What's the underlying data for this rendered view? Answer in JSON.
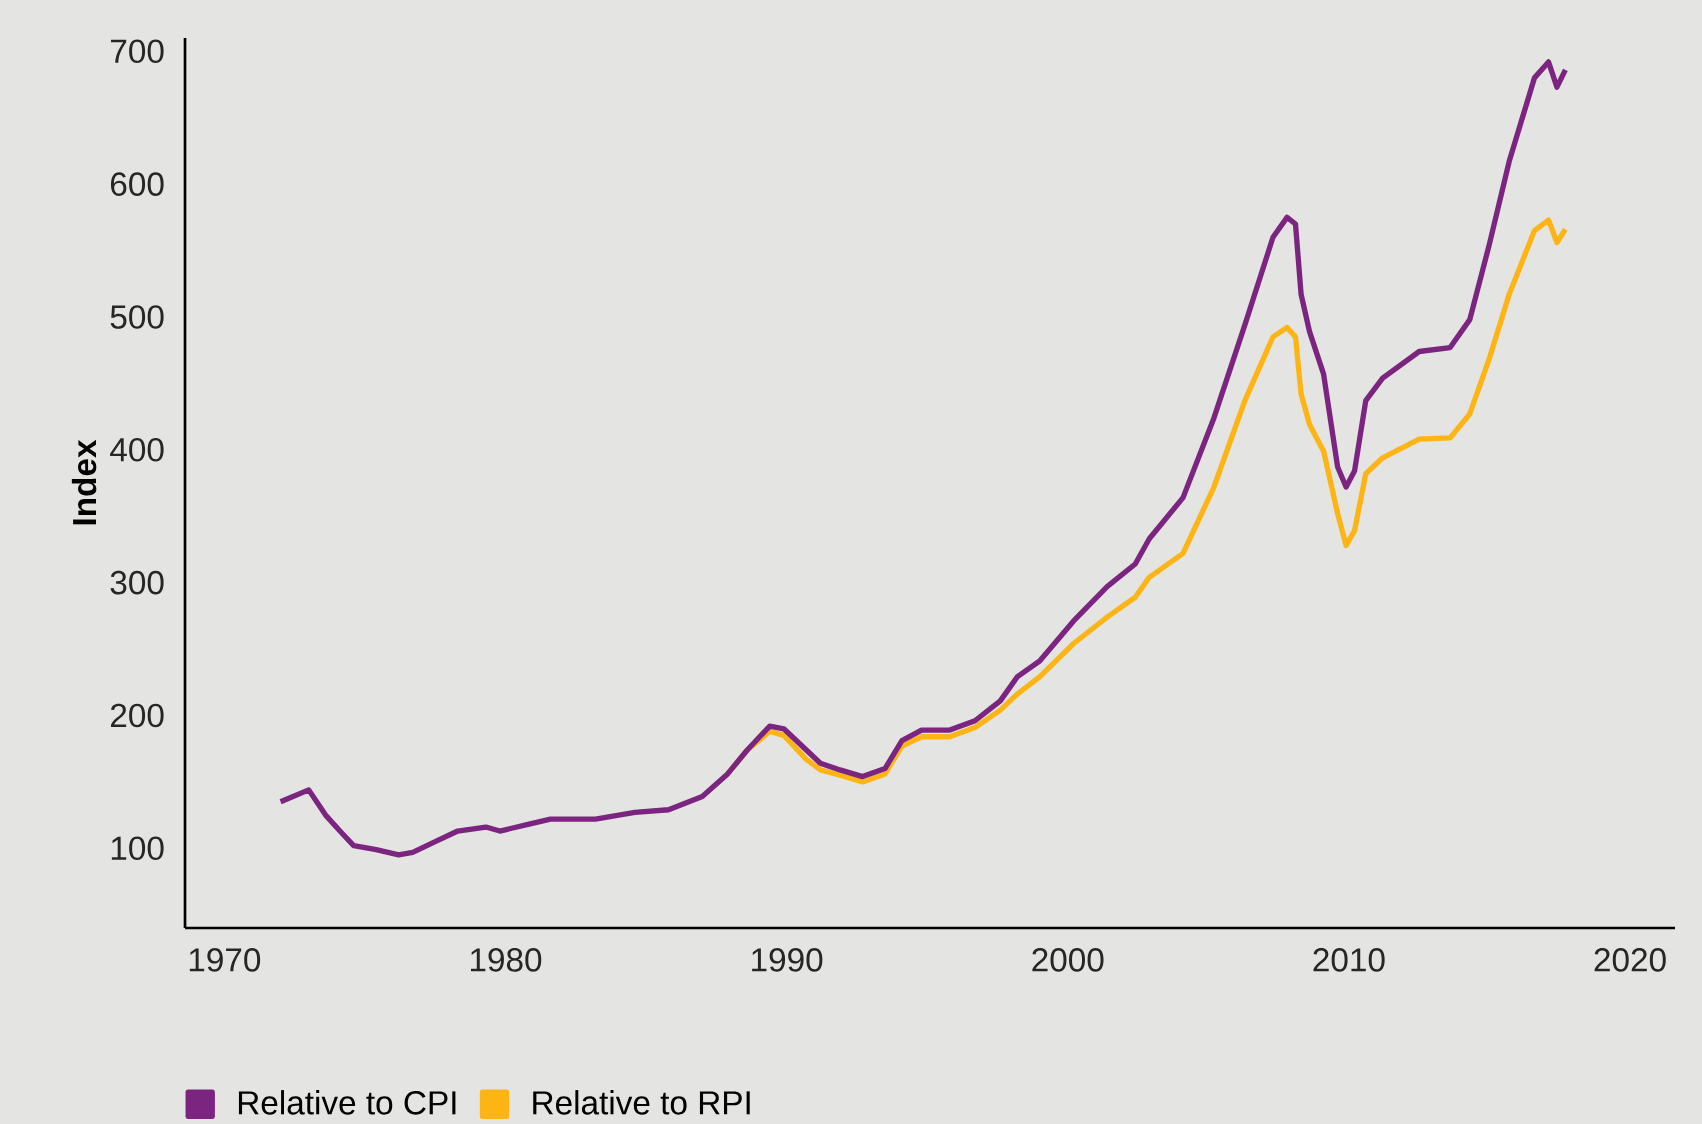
{
  "chart_data": {
    "type": "line",
    "ylabel": "Index",
    "x": [
      1972.0,
      1973.0,
      1973.6,
      1974.2,
      1974.6,
      1975.4,
      1976.2,
      1976.7,
      1977.5,
      1978.3,
      1979.3,
      1979.8,
      1980.8,
      1981.6,
      1983.2,
      1984.6,
      1985.8,
      1987.0,
      1987.9,
      1988.6,
      1989.4,
      1989.9,
      1990.7,
      1991.2,
      1991.9,
      1992.7,
      1993.5,
      1994.1,
      1994.8,
      1995.8,
      1996.7,
      1997.6,
      1998.2,
      1999.0,
      2000.2,
      2001.4,
      2002.4,
      2002.9,
      2004.1,
      2005.2,
      2006.3,
      2007.3,
      2007.8,
      2008.1,
      2008.3,
      2008.6,
      2009.1,
      2009.6,
      2009.9,
      2010.2,
      2010.6,
      2011.2,
      2012.5,
      2013.6,
      2014.3,
      2015.0,
      2015.7,
      2016.6,
      2017.1,
      2017.4,
      2017.7
    ],
    "series": [
      {
        "name": "Relative to CPI",
        "color": "#7b2580",
        "values": [
          135,
          144,
          125,
          111,
          102,
          99,
          95,
          97,
          105,
          113,
          116,
          113,
          118,
          122,
          122,
          127,
          129,
          139,
          156,
          174,
          192,
          190,
          174,
          164,
          159,
          154,
          160,
          181,
          189,
          189,
          196,
          211,
          229,
          241,
          271,
          297,
          314,
          333,
          364,
          424,
          494,
          560,
          575,
          570,
          517,
          489,
          457,
          387,
          372,
          384,
          437,
          454,
          474,
          477,
          498,
          555,
          617,
          680,
          692,
          673,
          686
        ]
      },
      {
        "name": "Relative to RPI",
        "color": "#fdb515",
        "values": [
          null,
          null,
          null,
          null,
          null,
          null,
          null,
          null,
          null,
          null,
          null,
          null,
          null,
          null,
          null,
          null,
          null,
          null,
          156,
          174,
          188,
          185,
          167,
          159,
          155,
          150,
          156,
          177,
          184,
          184,
          191,
          204,
          216,
          229,
          254,
          274,
          289,
          304,
          322,
          372,
          437,
          485,
          492,
          485,
          442,
          419,
          399,
          352,
          328,
          339,
          382,
          394,
          408,
          409,
          427,
          469,
          517,
          565,
          573,
          556,
          566
        ]
      }
    ],
    "xlim": [
      1968.6,
      2021.6
    ],
    "ylim": [
      40,
      710
    ],
    "xticks": [
      1970,
      1980,
      1990,
      2000,
      2010,
      2020
    ],
    "yticks": [
      100,
      200,
      300,
      400,
      500,
      600,
      700
    ],
    "grid": false,
    "legend": "bottom left"
  }
}
